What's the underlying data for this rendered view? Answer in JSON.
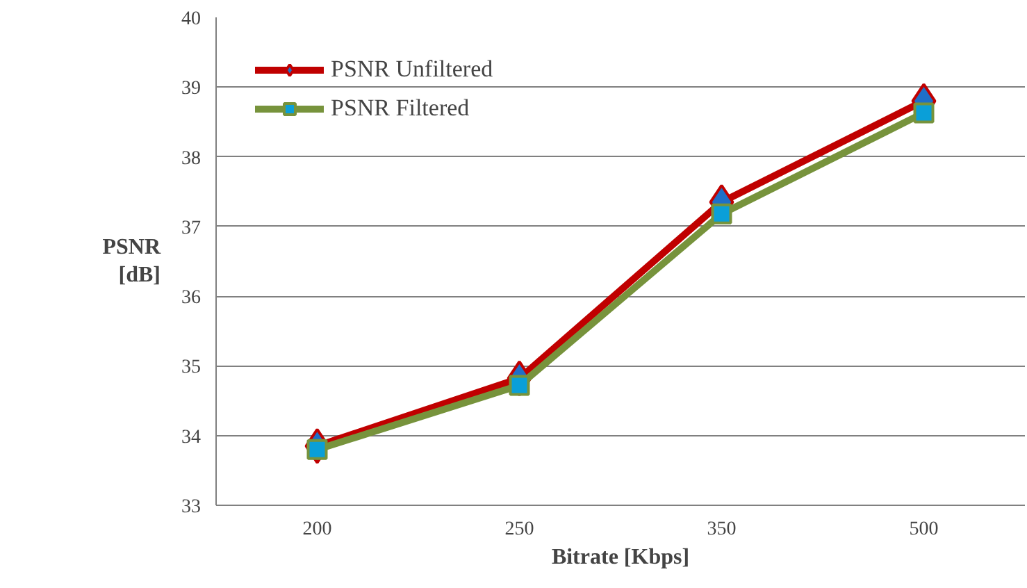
{
  "chart_data": {
    "type": "line",
    "xlabel": "Bitrate [Kbps]",
    "ylabel": "PSNR [dB]",
    "categories": [
      "200",
      "250",
      "350",
      "500"
    ],
    "series": [
      {
        "name": "PSNR Unfiltered",
        "color": "#c00000",
        "marker": "diamond",
        "values": [
          33.85,
          34.82,
          37.35,
          38.8
        ]
      },
      {
        "name": "PSNR Filtered",
        "color": "#77933c",
        "marker": "square",
        "values": [
          33.8,
          34.72,
          37.18,
          38.63
        ]
      }
    ],
    "ylim": [
      33,
      40
    ],
    "yticks": [
      33,
      34,
      35,
      36,
      37,
      38,
      39,
      40
    ],
    "grid": "y",
    "legend": "top left",
    "line_style": "solid"
  }
}
